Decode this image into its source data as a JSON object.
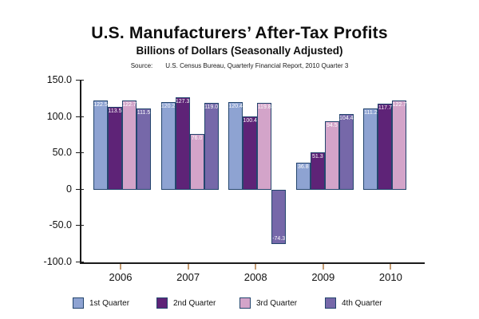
{
  "chart_data": {
    "type": "bar",
    "title": "U.S. Manufacturers’ After-Tax Profits",
    "subtitle": "Billions of Dollars (Seasonally Adjusted)",
    "source_label": "Source:",
    "source_text": "U.S. Census Bureau, Quarterly Financial Report, 2010 Quarter 3",
    "categories": [
      "2006",
      "2007",
      "2008",
      "2009",
      "2010"
    ],
    "series": [
      {
        "name": "1st Quarter",
        "color": "#8ea3d2",
        "values": [
          122.5,
          120.2,
          120.4,
          36.8,
          111.2
        ]
      },
      {
        "name": "2nd Quarter",
        "color": "#5e2377",
        "values": [
          113.5,
          127.3,
          100.4,
          51.3,
          117.7
        ]
      },
      {
        "name": "3rd Quarter",
        "color": "#d3a4c9",
        "values": [
          122.7,
          76.0,
          119.8,
          94.5,
          122.7
        ]
      },
      {
        "name": "4th Quarter",
        "color": "#7668a9",
        "values": [
          111.5,
          119.0,
          -74.3,
          104.4,
          null
        ]
      }
    ],
    "ylim": [
      -100,
      150
    ],
    "yticks": [
      150,
      100,
      50,
      0,
      -50,
      -100
    ],
    "ytick_labels": [
      "150.0",
      "100.0",
      "50.0",
      "0",
      "-50.0",
      "-100.0"
    ],
    "value_labels_shown": true,
    "grid": false,
    "legend_position": "bottom",
    "colors": {
      "bar_border": "#24466e",
      "axis": "#1a1a1a",
      "x_tick": "#c49b72",
      "value_label_text": "#ffffff",
      "background": "#ffffff"
    }
  }
}
